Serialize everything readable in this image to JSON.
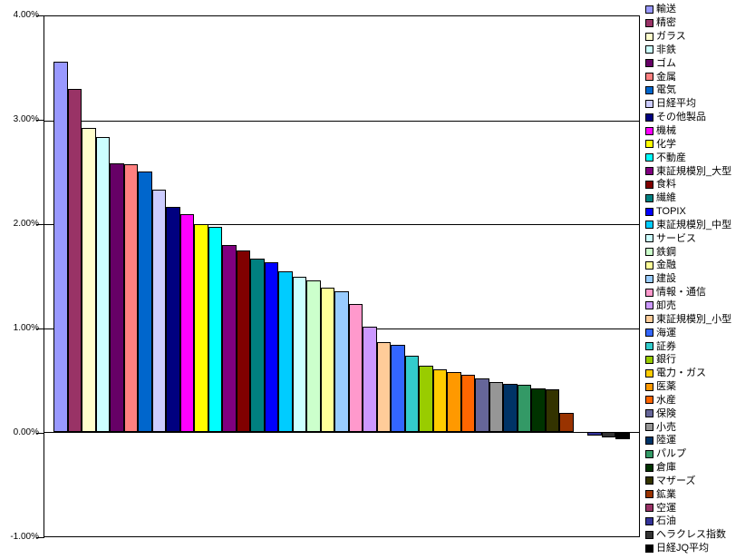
{
  "chart_data": {
    "type": "bar",
    "title": "",
    "xlabel": "",
    "ylabel": "",
    "ylim": [
      -1.0,
      4.0
    ],
    "grid": "horizontal-1pct",
    "legend_position": "right",
    "background_color": "#FFFFFF",
    "plot_border_color": "#000000",
    "y_tick_labels_top_to_bottom": [
      "4.00%",
      "3.00%",
      "2.00%",
      "1.00%",
      "0.00%",
      "-1.00%"
    ],
    "categories": [
      "輸送",
      "精密",
      "ガラス",
      "非鉄",
      "ゴム",
      "金属",
      "電気",
      "日経平均",
      "その他製品",
      "機械",
      "化学",
      "不動産",
      "東証規模別_大型",
      "食料",
      "繊維",
      "TOPIX",
      "東証規模別_中型",
      "サービス",
      "鉄鋼",
      "金融",
      "建設",
      "情報・通信",
      "卸売",
      "東証規模別_小型",
      "海運",
      "証券",
      "銀行",
      "電力・ガス",
      "医薬",
      "水産",
      "保険",
      "小売",
      "陸運",
      "パルプ",
      "倉庫",
      "マザーズ",
      "鉱業",
      "空運",
      "石油",
      "ヘラクレス指数",
      "日経JQ平均"
    ],
    "values": [
      3.56,
      3.3,
      2.93,
      2.84,
      2.59,
      2.58,
      2.51,
      2.33,
      2.17,
      2.1,
      2.0,
      1.98,
      1.8,
      1.75,
      1.67,
      1.64,
      1.55,
      1.5,
      1.46,
      1.39,
      1.36,
      1.23,
      1.02,
      0.87,
      0.84,
      0.74,
      0.64,
      0.61,
      0.58,
      0.55,
      0.52,
      0.48,
      0.47,
      0.46,
      0.42,
      0.41,
      0.19,
      0.0,
      -0.03,
      -0.05,
      -0.07
    ],
    "colors": [
      "#9999FF",
      "#993366",
      "#FFFFCC",
      "#CCFFFF",
      "#660066",
      "#FF8080",
      "#0066CC",
      "#CCCCFF",
      "#000080",
      "#FF00FF",
      "#FFFF00",
      "#00FFFF",
      "#800080",
      "#800000",
      "#008080",
      "#0000FF",
      "#00CCFF",
      "#CCFFFF",
      "#CCFFCC",
      "#FFFF99",
      "#99CCFF",
      "#FF99CC",
      "#CC99FF",
      "#FFCC99",
      "#3366FF",
      "#33CCCC",
      "#99CC00",
      "#FFCC00",
      "#FF9900",
      "#FF6600",
      "#666699",
      "#969696",
      "#003366",
      "#339966",
      "#003300",
      "#333300",
      "#993300",
      "#993366",
      "#333399",
      "#333333",
      "#000000"
    ],
    "value_unit": "%"
  }
}
